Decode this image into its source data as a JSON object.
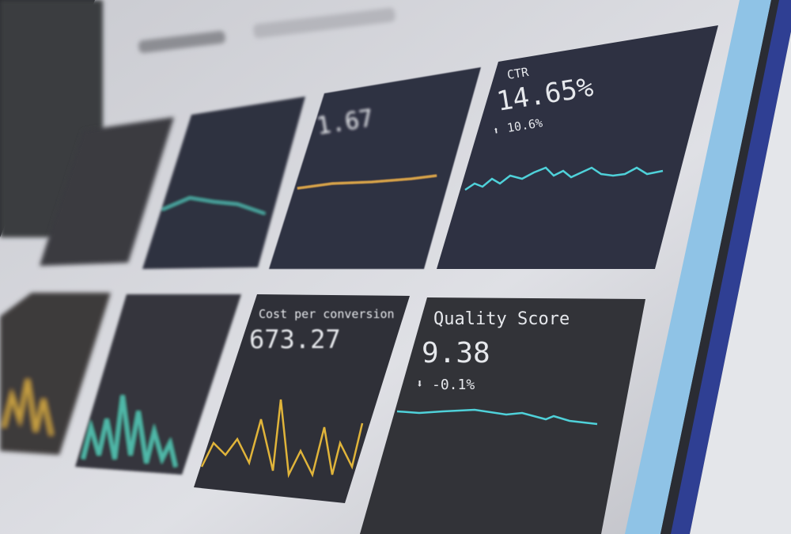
{
  "dashboard": {
    "cards": [
      {
        "label": "CTR",
        "value": "14.65%",
        "change": "10.6%",
        "trend_icon": "arrow-up-icon",
        "line_color": "#4fd1d9"
      },
      {
        "label": "Quality Score",
        "value": "9.38",
        "change": "-0.1%",
        "trend_icon": "arrow-down-icon",
        "line_color": "#4fd1d9"
      },
      {
        "label": "Cost per conversion",
        "value": "673.27",
        "line_color": "#e0b43a"
      },
      {
        "value": "1.67",
        "line_color": "#d9a548"
      }
    ]
  },
  "colors": {
    "screen_background": "#d8d9de",
    "card_background": "#2e3140",
    "bezel_light_blue": "#8fc3e6",
    "bezel_navy": "#2f3f93"
  }
}
